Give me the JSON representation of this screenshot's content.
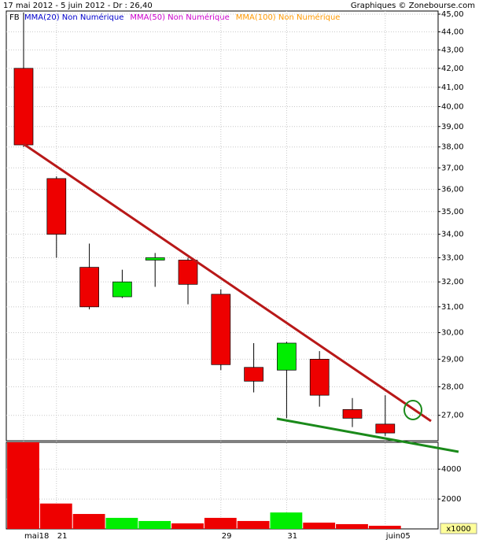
{
  "header": {
    "left": "17 mai 2012 - 5 juin 2012 - Dr : 26,40",
    "right": "Graphiques © Zonebourse.com"
  },
  "chart_data": [
    {
      "type": "candlestick",
      "symbol": "FB",
      "indicators": [
        {
          "name": "MMA(20) Non Numérique",
          "color": "#0000cc"
        },
        {
          "name": "MMA(50) Non Numérique",
          "color": "#cc00cc"
        },
        {
          "name": "MMA(100) Non Numérique",
          "color": "#ff9900"
        }
      ],
      "categories": [
        "mai18",
        "21",
        null,
        null,
        null,
        null,
        "29",
        null,
        "31",
        null,
        null,
        "juin05"
      ],
      "open": [
        42.0,
        36.5,
        32.6,
        31.4,
        32.9,
        32.9,
        31.5,
        28.7,
        28.6,
        29.0,
        27.2,
        26.7
      ],
      "high": [
        45.1,
        36.6,
        33.6,
        32.5,
        33.2,
        33.0,
        31.7,
        29.6,
        29.65,
        29.3,
        27.6,
        27.7
      ],
      "low": [
        38.0,
        33.0,
        30.9,
        31.35,
        31.8,
        31.1,
        28.6,
        27.8,
        26.9,
        27.3,
        26.6,
        26.3
      ],
      "close": [
        38.1,
        34.0,
        31.0,
        32.0,
        33.0,
        31.9,
        28.8,
        28.2,
        29.6,
        27.7,
        26.9,
        26.4
      ],
      "up_color": "#00ee00",
      "down_color": "#ee0000",
      "ylim": [
        26.14,
        45.18
      ],
      "log_scale": true,
      "grid": true,
      "yticks": [
        {
          "value": 27,
          "label": "27,00"
        },
        {
          "value": 28,
          "label": "28,00"
        },
        {
          "value": 29,
          "label": "29,00"
        },
        {
          "value": 30,
          "label": "30,00"
        },
        {
          "value": 31,
          "label": "31,00"
        },
        {
          "value": 32,
          "label": "32,00"
        },
        {
          "value": 33,
          "label": "33,00"
        },
        {
          "value": 34,
          "label": "34,00"
        },
        {
          "value": 35,
          "label": "35,00"
        },
        {
          "value": 36,
          "label": "36,00"
        },
        {
          "value": 37,
          "label": "37,00"
        },
        {
          "value": 38,
          "label": "38,00"
        },
        {
          "value": 39,
          "label": "39,00"
        },
        {
          "value": 40,
          "label": "40,00"
        },
        {
          "value": 41,
          "label": "41,00"
        },
        {
          "value": 42,
          "label": "42,00"
        },
        {
          "value": 43,
          "label": "43,00"
        },
        {
          "value": 44,
          "label": "44,00"
        },
        {
          "value": 45,
          "label": "45,00"
        }
      ]
    },
    {
      "type": "bar",
      "unit_label": "x1000",
      "values": [
        5800,
        1700,
        1000,
        740,
        530,
        370,
        740,
        530,
        1100,
        420,
        320,
        210
      ],
      "ylim": [
        0,
        5800
      ],
      "yticks": [
        2000,
        4000
      ],
      "grid": true
    }
  ]
}
